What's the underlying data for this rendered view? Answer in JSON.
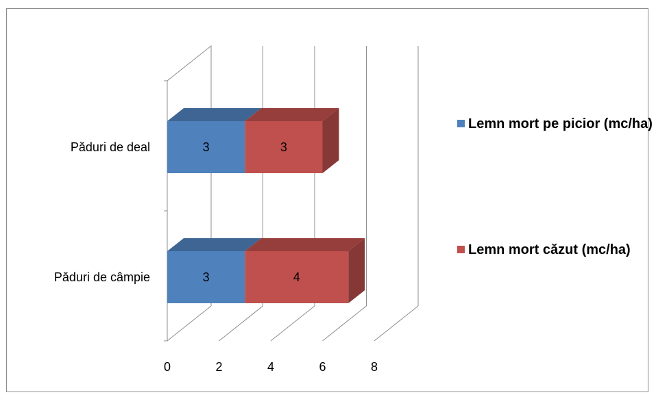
{
  "chart_data": {
    "type": "bar",
    "orientation": "horizontal",
    "stacked": true,
    "style_3d": true,
    "categories": [
      "Păduri de deal",
      "Păduri de câmpie"
    ],
    "series": [
      {
        "name": "Lemn mort pe picior (mc/ha)",
        "values": [
          3,
          3
        ],
        "color": "#4f81bd"
      },
      {
        "name": "Lemn mort căzut (mc/ha)",
        "values": [
          3,
          4
        ],
        "color": "#c0504d"
      }
    ],
    "xlim": [
      0,
      8
    ],
    "xticks": [
      "0",
      "2",
      "4",
      "6",
      "8"
    ],
    "grid": true,
    "legend_position": "right"
  }
}
